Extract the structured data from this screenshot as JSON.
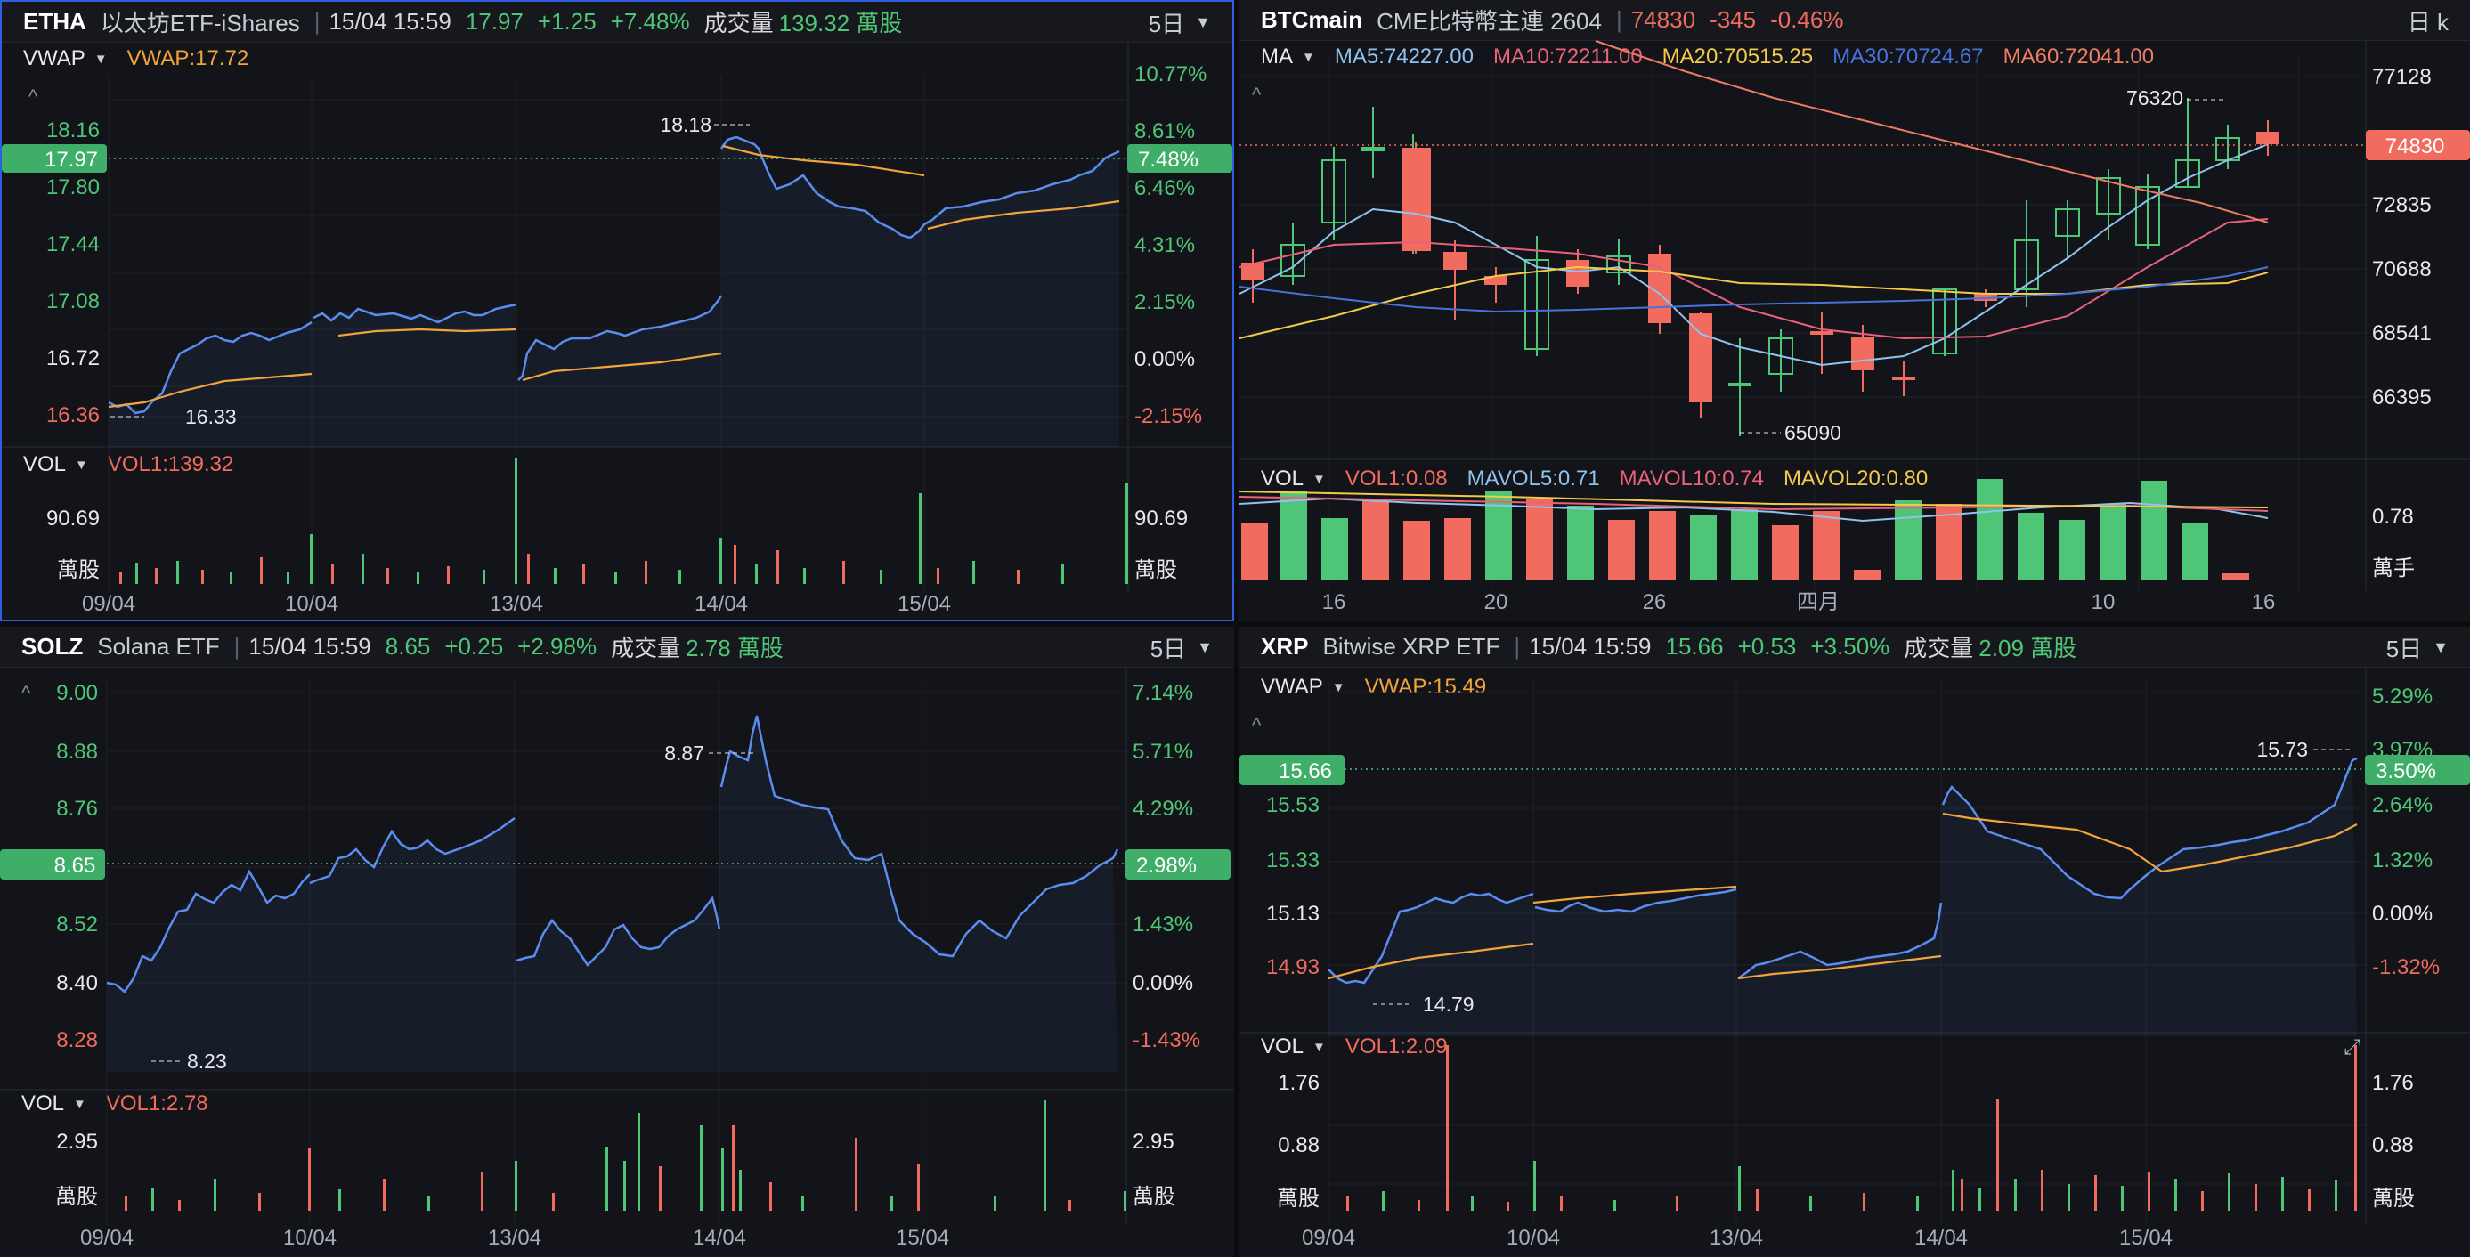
{
  "colors": {
    "up": "#4fc677",
    "down": "#f16b5e",
    "price": "#5b8def",
    "vwap": "#f2a43a",
    "selected": "#2f5fe0"
  },
  "etha": {
    "header": {
      "symbol": "ETHA",
      "name": "以太坊ETF-iShares",
      "time": "15/04 15:59",
      "price": "17.97",
      "change": "+1.25",
      "pct": "+7.48%",
      "vol_label": "成交量",
      "vol": "139.32 萬股",
      "period": "5日"
    },
    "indicator": {
      "name": "VWAP",
      "value": "VWAP:17.72"
    },
    "price_axis": [
      "18.16",
      "17.80",
      "17.44",
      "17.08",
      "16.72",
      "16.36"
    ],
    "pct_axis": [
      "10.77%",
      "8.61%",
      "6.46%",
      "4.31%",
      "2.15%",
      "0.00%",
      "-2.15%"
    ],
    "current_price": "17.97",
    "current_pct": "7.48%",
    "high": "18.18",
    "low": "16.33",
    "vol": {
      "name": "VOL",
      "value": "VOL1:139.32",
      "axis": "90.69",
      "unit": "萬股"
    },
    "dates": [
      "09/04",
      "10/04",
      "13/04",
      "14/04",
      "15/04"
    ]
  },
  "btc": {
    "header": {
      "symbol": "BTCmain",
      "name": "CME比特幣主連 2604",
      "price": "74830",
      "change": "-345",
      "pct": "-0.46%",
      "period": "日 k"
    },
    "ma": {
      "name": "MA",
      "ma5": "MA5:74227.00",
      "ma10": "MA10:72211.00",
      "ma20": "MA20:70515.25",
      "ma30": "MA30:70724.67",
      "ma60": "MA60:72041.00"
    },
    "price_axis": [
      "77128",
      "72835",
      "70688",
      "68541",
      "66395"
    ],
    "current_price": "74830",
    "high": "76320",
    "low": "65090",
    "vol": {
      "name": "VOL",
      "vol1": "VOL1:0.08",
      "mavol5": "MAVOL5:0.71",
      "mavol10": "MAVOL10:0.74",
      "mavol20": "MAVOL20:0.80",
      "axis": "0.78",
      "unit": "萬手"
    },
    "dates": [
      "16",
      "20",
      "26",
      "四月",
      "10",
      "16"
    ]
  },
  "solz": {
    "header": {
      "symbol": "SOLZ",
      "name": "Solana ETF",
      "time": "15/04 15:59",
      "price": "8.65",
      "change": "+0.25",
      "pct": "+2.98%",
      "vol_label": "成交量",
      "vol": "2.78 萬股",
      "period": "5日"
    },
    "price_axis": [
      "9.00",
      "8.88",
      "8.76",
      "8.52",
      "8.40",
      "8.28"
    ],
    "pct_axis": [
      "7.14%",
      "5.71%",
      "4.29%",
      "1.43%",
      "0.00%",
      "-1.43%"
    ],
    "current_price": "8.65",
    "current_pct": "2.98%",
    "high": "8.87",
    "low": "8.23",
    "vol": {
      "name": "VOL",
      "value": "VOL1:2.78",
      "axis": "2.95",
      "unit": "萬股"
    },
    "dates": [
      "09/04",
      "10/04",
      "13/04",
      "14/04",
      "15/04"
    ]
  },
  "xrp": {
    "header": {
      "symbol": "XRP",
      "name": "Bitwise XRP ETF",
      "time": "15/04 15:59",
      "price": "15.66",
      "change": "+0.53",
      "pct": "+3.50%",
      "vol_label": "成交量",
      "vol": "2.09 萬股",
      "period": "5日"
    },
    "indicator": {
      "name": "VWAP",
      "value": "VWAP:15.49"
    },
    "price_axis": [
      "15.53",
      "15.33",
      "15.13",
      "14.93"
    ],
    "pct_axis": [
      "5.29%",
      "3.97%",
      "2.64%",
      "1.32%",
      "0.00%",
      "-1.32%"
    ],
    "current_price": "15.66",
    "current_pct": "3.50%",
    "high": "15.73",
    "low": "14.79",
    "vol": {
      "name": "VOL",
      "value": "VOL1:2.09",
      "axis_top": "1.76",
      "axis_mid": "0.88",
      "unit": "萬股"
    },
    "dates": [
      "09/04",
      "10/04",
      "13/04",
      "14/04",
      "15/04"
    ]
  }
}
